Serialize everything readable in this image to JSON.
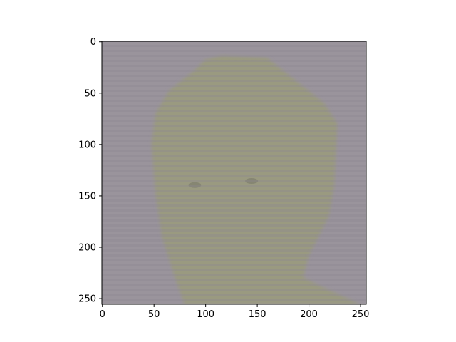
{
  "chart_data": {
    "type": "heatmap",
    "image_size": [
      256,
      256
    ],
    "xlim": [
      0,
      256
    ],
    "ylim": [
      256,
      0
    ],
    "xticks": [
      0,
      50,
      100,
      150,
      200,
      250
    ],
    "yticks": [
      0,
      50,
      100,
      150,
      200,
      250
    ],
    "xtick_labels": [
      "0",
      "50",
      "100",
      "150",
      "200",
      "250"
    ],
    "ytick_labels": [
      "0",
      "50",
      "100",
      "150",
      "200",
      "250"
    ],
    "y_axis_inverted": true,
    "grid": false,
    "title": "",
    "xlabel": "",
    "ylabel": "",
    "content": "photograph",
    "colors": {
      "background": "#9a949c",
      "subject": "#9a9a80",
      "stripe": "#8c8692",
      "frame": "#000000"
    },
    "subject_outline": [
      [
        100,
        18
      ],
      [
        116,
        14
      ],
      [
        160,
        16
      ],
      [
        190,
        40
      ],
      [
        215,
        60
      ],
      [
        228,
        80
      ],
      [
        225,
        140
      ],
      [
        220,
        170
      ],
      [
        200,
        210
      ],
      [
        195,
        230
      ],
      [
        215,
        240
      ],
      [
        250,
        256
      ],
      [
        80,
        256
      ],
      [
        70,
        228
      ],
      [
        58,
        190
      ],
      [
        52,
        150
      ],
      [
        48,
        100
      ],
      [
        52,
        70
      ],
      [
        65,
        48
      ],
      [
        90,
        28
      ]
    ],
    "eyes": [
      [
        90,
        140
      ],
      [
        145,
        136
      ]
    ]
  }
}
